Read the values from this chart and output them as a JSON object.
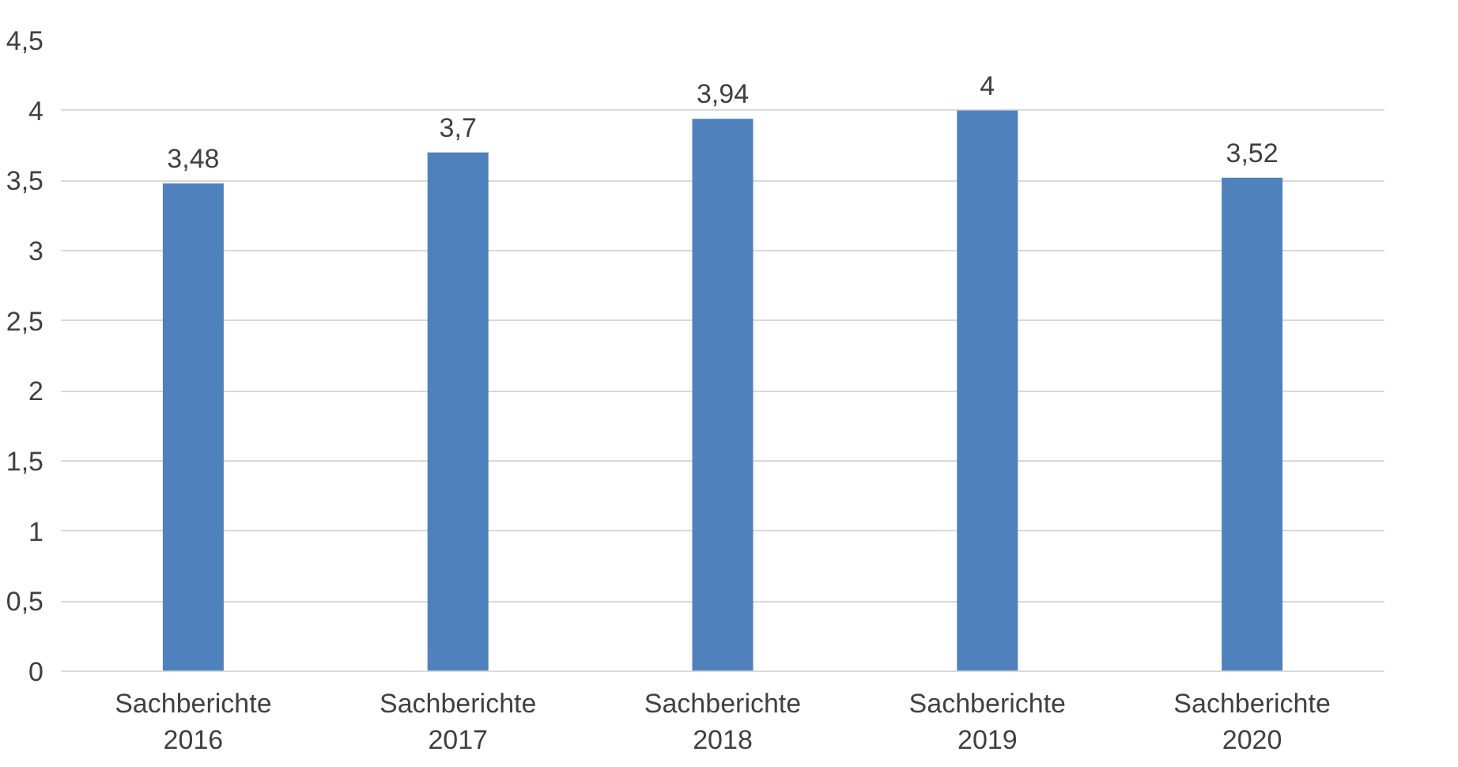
{
  "chart_data": {
    "type": "bar",
    "categories": [
      "Sachberichte\n2016",
      "Sachberichte\n2017",
      "Sachberichte\n2018",
      "Sachberichte\n2019",
      "Sachberichte\n2020"
    ],
    "values": [
      3.48,
      3.7,
      3.94,
      4,
      3.52
    ],
    "value_labels": [
      "3,48",
      "3,7",
      "3,94",
      "4",
      "3,52"
    ],
    "color": "#4f81bd",
    "ylim": [
      0,
      4.5
    ],
    "yticks": [
      0,
      {
        "value": 0.5,
        "label": "0,5"
      },
      1,
      {
        "value": 1.5,
        "label": "1,5"
      },
      2,
      {
        "value": 2.5,
        "label": "2,5"
      },
      3,
      {
        "value": 3.5,
        "label": "3,5"
      },
      4,
      {
        "value": 4.5,
        "label": "4,5"
      }
    ],
    "grid": "y"
  }
}
